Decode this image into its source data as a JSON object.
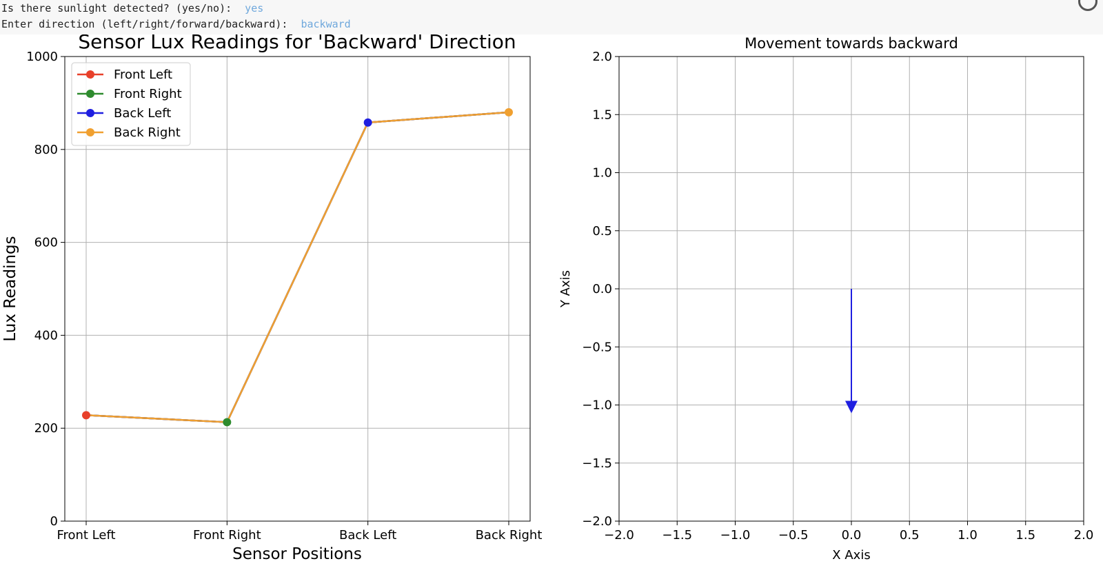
{
  "console": {
    "line1_prompt": "Is there sunlight detected? (yes/no): ",
    "line1_answer": "yes",
    "line2_prompt": "Enter direction (left/right/forward/backward): ",
    "line2_answer": "backward"
  },
  "chart_data": [
    {
      "type": "line",
      "title": "Sensor Lux Readings for 'Backward' Direction",
      "xlabel": "Sensor Positions",
      "ylabel": "Lux Readings",
      "categories": [
        "Front Left",
        "Front Right",
        "Back Left",
        "Back Right"
      ],
      "ylim": [
        0,
        1000
      ],
      "yticks": [
        0,
        200,
        400,
        600,
        800,
        1000
      ],
      "grid": true,
      "legend_position": "top-left",
      "series": [
        {
          "name": "Front Left",
          "color": "#e8402a",
          "values": [
            228,
            213,
            858,
            880
          ]
        },
        {
          "name": "Front Right",
          "color": "#2e8b2e",
          "values": [
            228,
            213,
            858,
            880
          ]
        },
        {
          "name": "Back Left",
          "color": "#1f1fe0",
          "values": [
            228,
            213,
            858,
            880
          ]
        },
        {
          "name": "Back Right",
          "color": "#f0a030",
          "values": [
            228,
            213,
            858,
            880
          ]
        }
      ],
      "markers": [
        {
          "category": "Front Left",
          "value": 228,
          "color": "#e8402a"
        },
        {
          "category": "Front Right",
          "value": 213,
          "color": "#2e8b2e"
        },
        {
          "category": "Back Left",
          "value": 858,
          "color": "#1f1fe0"
        },
        {
          "category": "Back Right",
          "value": 880,
          "color": "#f0a030"
        }
      ]
    },
    {
      "type": "vector",
      "title": "Movement towards backward",
      "xlabel": "X Axis",
      "ylabel": "Y Axis",
      "xlim": [
        -2.0,
        2.0
      ],
      "ylim": [
        -2.0,
        2.0
      ],
      "xticks": [
        "−2.0",
        "−1.5",
        "−1.0",
        "−0.5",
        "0.0",
        "0.5",
        "1.0",
        "1.5",
        "2.0"
      ],
      "yticks": [
        "−2.0",
        "−1.5",
        "−1.0",
        "−0.5",
        "0.0",
        "0.5",
        "1.0",
        "1.5",
        "2.0"
      ],
      "grid": true,
      "arrow": {
        "x0": 0,
        "y0": 0,
        "dx": 0,
        "dy": -1,
        "color": "#1f1fe0"
      }
    }
  ]
}
